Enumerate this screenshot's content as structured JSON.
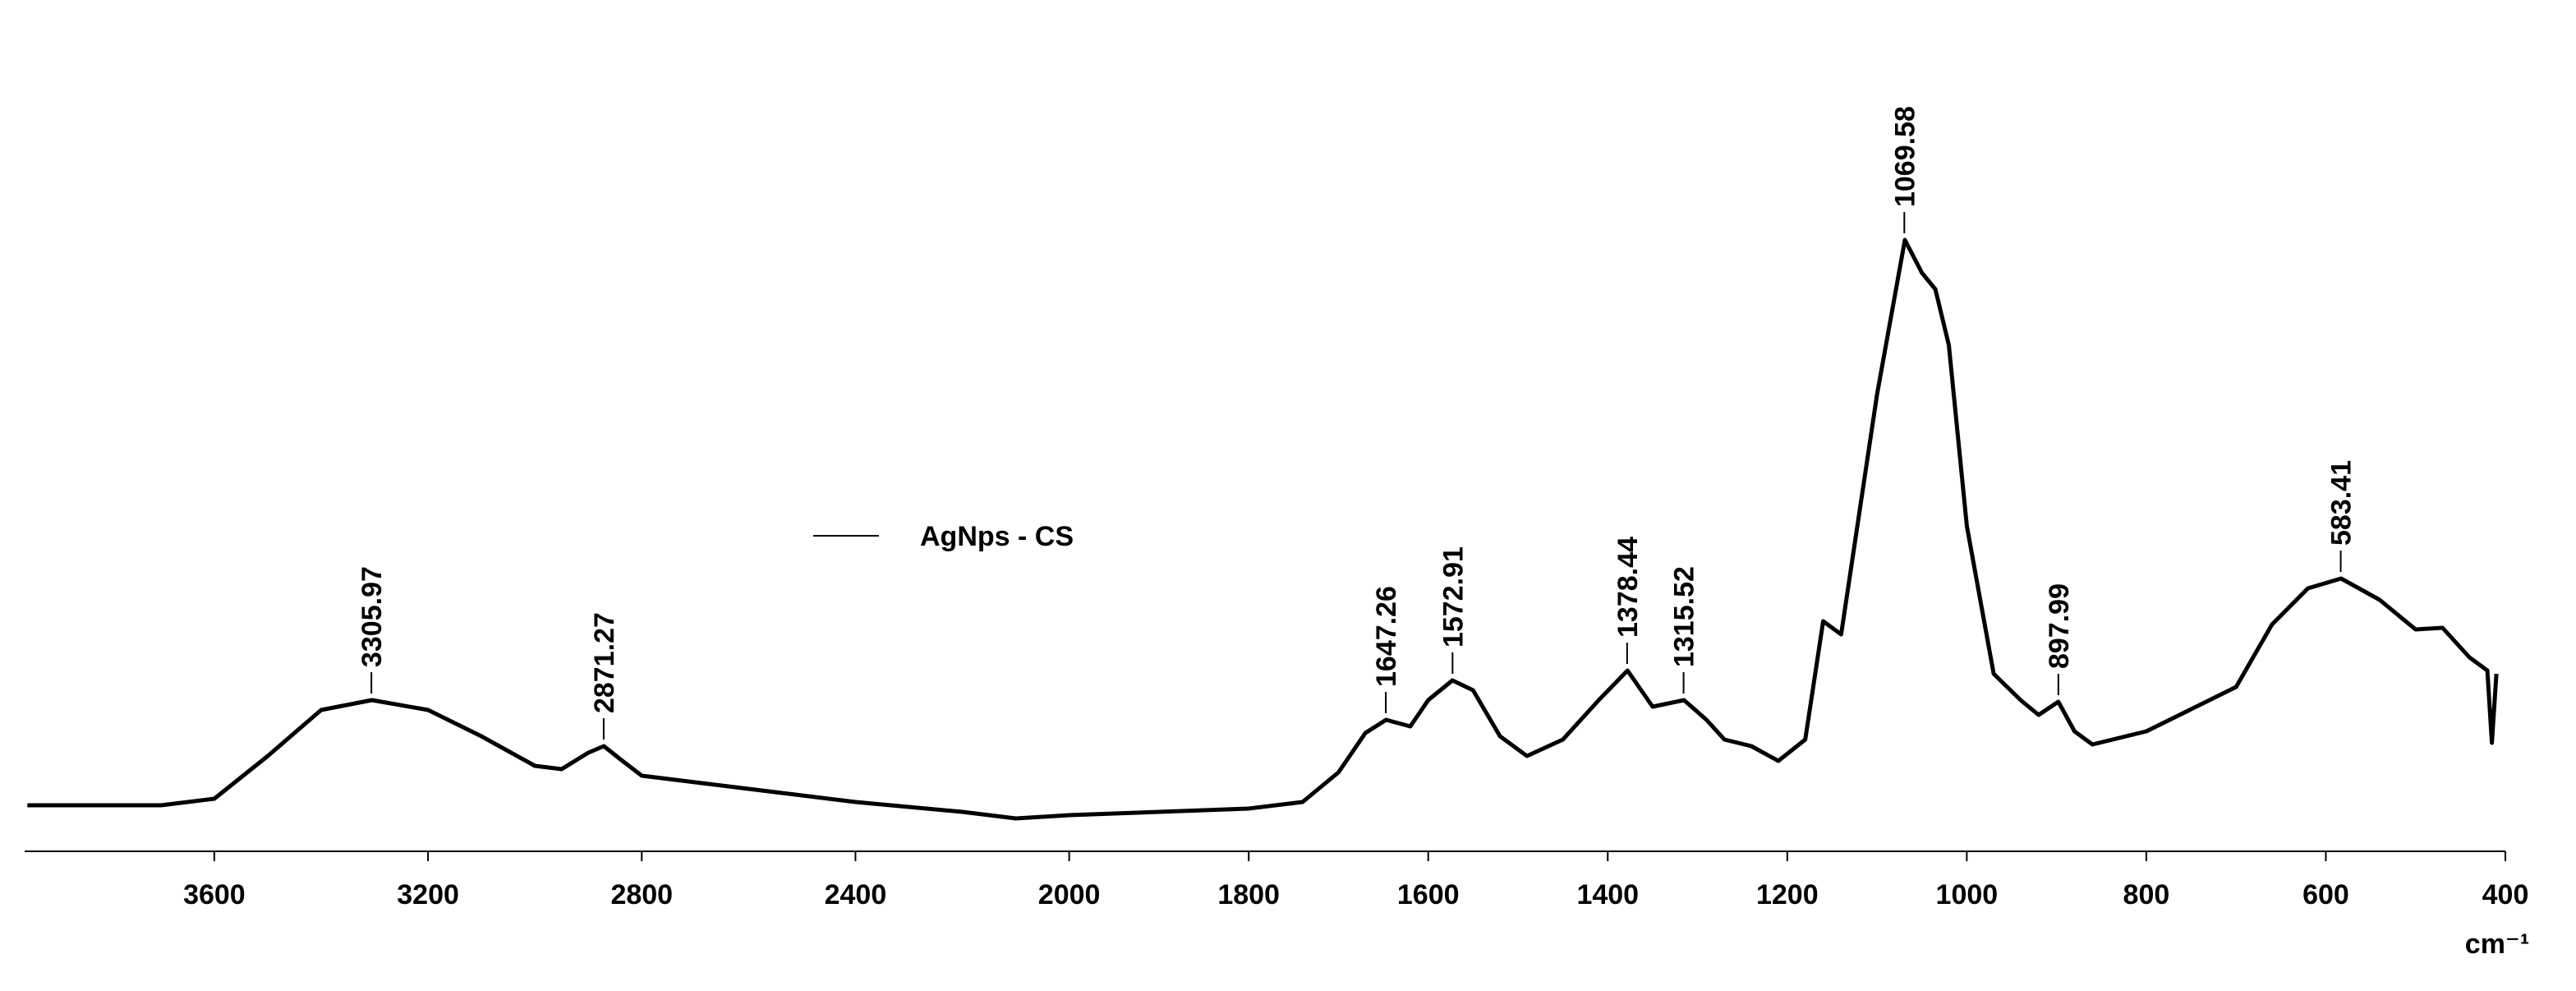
{
  "chart_data": {
    "type": "line",
    "x_label": "cm⁻¹",
    "xlim": [
      3955,
      400
    ],
    "x_scale_break": 2000,
    "xticks": [
      3600,
      3200,
      2800,
      2400,
      2000,
      1800,
      1600,
      1400,
      1200,
      1000,
      800,
      600,
      400
    ],
    "ylim": [
      0,
      100
    ],
    "grid": false,
    "legend": "center",
    "series": [
      {
        "name": "AgNps - CS",
        "color": "#000000",
        "x": [
          3950,
          3700,
          3600,
          3500,
          3400,
          3305,
          3200,
          3100,
          3000,
          2950,
          2900,
          2871,
          2840,
          2800,
          2600,
          2400,
          2200,
          2100,
          2000,
          1900,
          1800,
          1740,
          1700,
          1670,
          1647,
          1620,
          1600,
          1573,
          1550,
          1520,
          1490,
          1450,
          1410,
          1378,
          1350,
          1315,
          1290,
          1270,
          1240,
          1210,
          1180,
          1160,
          1140,
          1100,
          1069,
          1050,
          1035,
          1020,
          1000,
          970,
          940,
          920,
          898,
          880,
          860,
          800,
          700,
          660,
          620,
          583,
          540,
          500,
          470,
          440,
          420,
          415,
          410
        ],
        "values": [
          7,
          7,
          8,
          14.5,
          21.5,
          23,
          21.5,
          17.5,
          13,
          12.5,
          15,
          16,
          14,
          11.5,
          9.5,
          7.5,
          6,
          5,
          5.5,
          6,
          6.5,
          7.5,
          12,
          18,
          20,
          19,
          23,
          26,
          24.5,
          17.5,
          14.5,
          17,
          23,
          27.5,
          22,
          23,
          20,
          17,
          16,
          13.75,
          17,
          35,
          33,
          69.5,
          93,
          88,
          85.5,
          77,
          49.5,
          27,
          23,
          20.75,
          22.75,
          18.25,
          16.25,
          18.25,
          25,
          34.5,
          40,
          41.5,
          38.25,
          33.75,
          34,
          29.5,
          27.5,
          16.5,
          27
        ]
      }
    ],
    "peaks": [
      {
        "x": 3305.97,
        "y": 23
      },
      {
        "x": 2871.27,
        "y": 16
      },
      {
        "x": 1647.26,
        "y": 20
      },
      {
        "x": 1572.91,
        "y": 26
      },
      {
        "x": 1378.44,
        "y": 27.5
      },
      {
        "x": 1315.52,
        "y": 23
      },
      {
        "x": 1069.58,
        "y": 93
      },
      {
        "x": 897.99,
        "y": 22.75
      },
      {
        "x": 583.41,
        "y": 41.5
      }
    ]
  }
}
